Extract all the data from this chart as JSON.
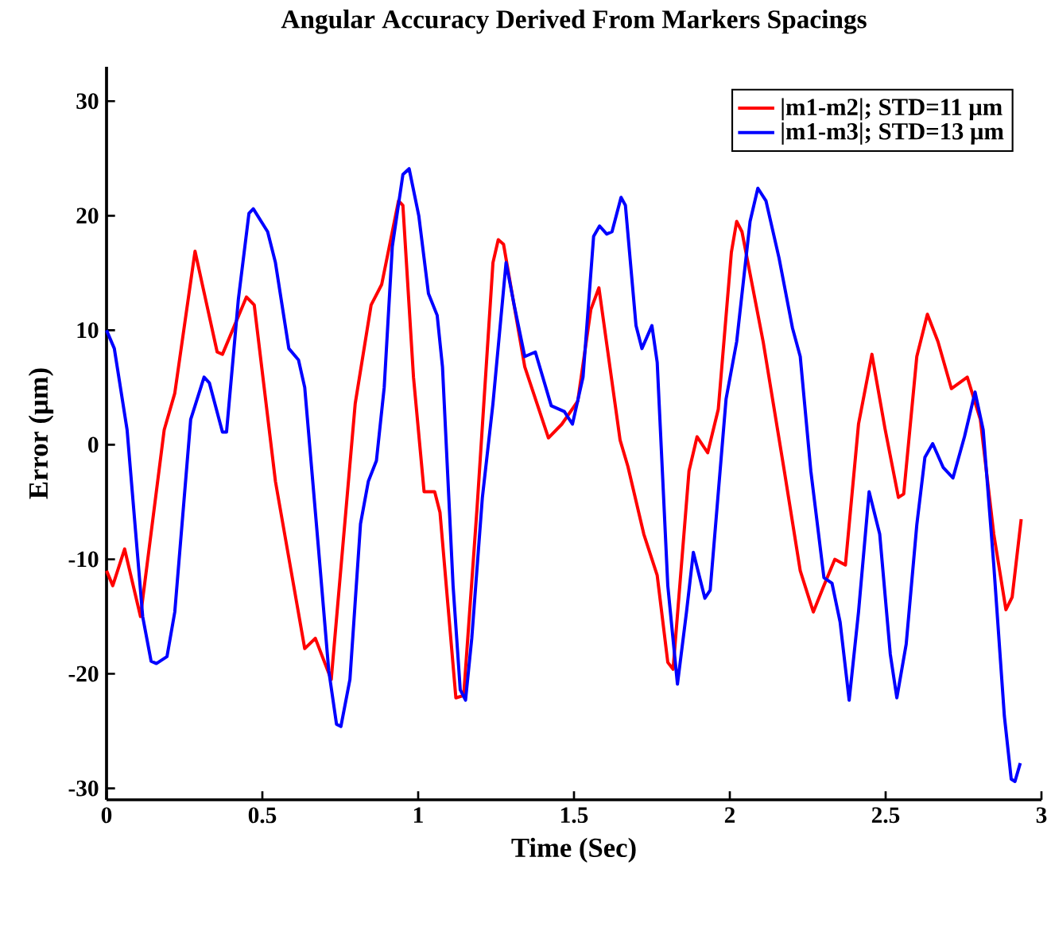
{
  "chart_data": {
    "type": "line",
    "title": "Angular Accuracy Derived From Markers Spacings",
    "xlabel": "Time (Sec)",
    "ylabel": "Error (μm)",
    "xlim": [
      0,
      3
    ],
    "ylim": [
      -31,
      33
    ],
    "xticks": [
      0,
      0.5,
      1,
      1.5,
      2,
      2.5,
      3
    ],
    "yticks": [
      -30,
      -20,
      -10,
      0,
      10,
      20,
      30
    ],
    "legend": "top right",
    "series": [
      {
        "name": "|m1-m2|; STD=11  μm",
        "color": "#ff0000",
        "x": [
          0.0,
          0.02,
          0.058,
          0.109,
          0.185,
          0.219,
          0.284,
          0.355,
          0.372,
          0.449,
          0.474,
          0.542,
          0.636,
          0.67,
          0.721,
          0.798,
          0.849,
          0.883,
          0.937,
          0.951,
          0.985,
          1.019,
          1.053,
          1.07,
          1.121,
          1.146,
          1.189,
          1.24,
          1.257,
          1.274,
          1.342,
          1.418,
          1.461,
          1.512,
          1.554,
          1.58,
          1.648,
          1.673,
          1.724,
          1.767,
          1.801,
          1.818,
          1.869,
          1.895,
          1.929,
          1.963,
          2.005,
          2.022,
          2.039,
          2.107,
          2.175,
          2.226,
          2.268,
          2.302,
          2.337,
          2.371,
          2.413,
          2.456,
          2.498,
          2.541,
          2.558,
          2.6,
          2.634,
          2.668,
          2.711,
          2.762,
          2.804,
          2.847,
          2.886,
          2.906,
          2.935
        ],
        "values": [
          -11.0,
          -12.3,
          -9.1,
          -15.0,
          1.3,
          4.5,
          16.9,
          8.1,
          7.9,
          12.9,
          12.2,
          -3.2,
          -17.8,
          -16.9,
          -20.5,
          3.6,
          12.2,
          14.0,
          21.3,
          20.9,
          5.9,
          -4.1,
          -4.1,
          -5.9,
          -22.1,
          -21.9,
          -5.5,
          15.9,
          17.9,
          17.5,
          6.8,
          0.6,
          1.8,
          3.8,
          11.8,
          13.7,
          0.4,
          -1.9,
          -7.8,
          -11.4,
          -19.0,
          -19.6,
          -2.3,
          0.7,
          -0.7,
          3.1,
          16.8,
          19.5,
          18.6,
          9.0,
          -2.3,
          -11.0,
          -14.6,
          -12.3,
          -10.0,
          -10.5,
          1.8,
          7.9,
          1.4,
          -4.6,
          -4.3,
          7.7,
          11.4,
          9.0,
          4.9,
          5.9,
          2.2,
          -7.8,
          -14.4,
          -13.3,
          -6.5
        ]
      },
      {
        "name": "|m1-m3|; STD=13  μm",
        "color": "#0000ff",
        "x": [
          0.0,
          0.025,
          0.066,
          0.116,
          0.143,
          0.16,
          0.194,
          0.219,
          0.27,
          0.313,
          0.33,
          0.372,
          0.385,
          0.423,
          0.457,
          0.471,
          0.517,
          0.542,
          0.585,
          0.616,
          0.636,
          0.679,
          0.713,
          0.738,
          0.752,
          0.781,
          0.815,
          0.84,
          0.866,
          0.891,
          0.917,
          0.951,
          0.971,
          1.002,
          1.033,
          1.061,
          1.078,
          1.112,
          1.135,
          1.152,
          1.172,
          1.206,
          1.24,
          1.282,
          1.308,
          1.342,
          1.376,
          1.427,
          1.469,
          1.495,
          1.529,
          1.563,
          1.582,
          1.605,
          1.622,
          1.651,
          1.665,
          1.699,
          1.718,
          1.75,
          1.767,
          1.801,
          1.832,
          1.861,
          1.883,
          1.92,
          1.937,
          1.988,
          2.022,
          2.065,
          2.09,
          2.116,
          2.158,
          2.201,
          2.226,
          2.26,
          2.302,
          2.328,
          2.354,
          2.383,
          2.413,
          2.447,
          2.481,
          2.515,
          2.536,
          2.566,
          2.6,
          2.626,
          2.651,
          2.685,
          2.716,
          2.753,
          2.787,
          2.813,
          2.847,
          2.881,
          2.903,
          2.915,
          2.932
        ],
        "values": [
          10.0,
          8.4,
          1.3,
          -15.0,
          -18.9,
          -19.1,
          -18.5,
          -14.6,
          2.2,
          5.9,
          5.4,
          1.1,
          1.1,
          12.7,
          20.2,
          20.6,
          18.6,
          15.9,
          8.4,
          7.4,
          5.0,
          -8.7,
          -19.7,
          -24.4,
          -24.6,
          -20.5,
          -6.9,
          -3.2,
          -1.4,
          5.0,
          17.3,
          23.6,
          24.1,
          20.0,
          13.2,
          11.3,
          6.8,
          -12.3,
          -21.4,
          -22.3,
          -16.9,
          -4.6,
          3.6,
          15.9,
          12.2,
          7.7,
          8.1,
          3.4,
          2.9,
          1.8,
          5.9,
          18.2,
          19.1,
          18.4,
          18.6,
          21.6,
          20.9,
          10.4,
          8.4,
          10.4,
          7.2,
          -12.3,
          -20.9,
          -14.6,
          -9.4,
          -13.4,
          -12.7,
          4.0,
          9.0,
          19.5,
          22.4,
          21.3,
          16.3,
          10.2,
          7.7,
          -2.3,
          -11.6,
          -12.1,
          -15.5,
          -22.3,
          -14.6,
          -4.1,
          -7.8,
          -18.3,
          -22.1,
          -17.4,
          -7.0,
          -1.1,
          0.1,
          -2.0,
          -2.9,
          0.7,
          4.6,
          1.3,
          -10.5,
          -23.7,
          -29.2,
          -29.4,
          -27.8
        ]
      }
    ]
  }
}
